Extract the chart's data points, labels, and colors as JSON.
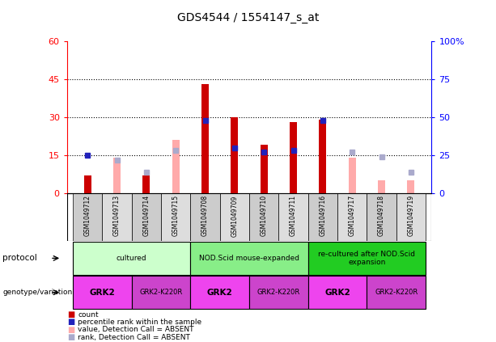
{
  "title": "GDS4544 / 1554147_s_at",
  "samples": [
    "GSM1049712",
    "GSM1049713",
    "GSM1049714",
    "GSM1049715",
    "GSM1049708",
    "GSM1049709",
    "GSM1049710",
    "GSM1049711",
    "GSM1049716",
    "GSM1049717",
    "GSM1049718",
    "GSM1049719"
  ],
  "count_values": [
    7,
    0,
    7,
    0,
    43,
    30,
    19,
    28,
    29,
    0,
    0,
    0
  ],
  "percentile_values": [
    25,
    0,
    0,
    0,
    48,
    30,
    27,
    28,
    48,
    0,
    0,
    0
  ],
  "absent_value_values": [
    0,
    14,
    0,
    21,
    0,
    0,
    0,
    0,
    0,
    14,
    5,
    5
  ],
  "absent_rank_values": [
    0,
    22,
    14,
    28,
    0,
    0,
    0,
    0,
    0,
    27,
    24,
    14
  ],
  "ylim_left": [
    0,
    60
  ],
  "ylim_right": [
    0,
    100
  ],
  "yticks_left": [
    0,
    15,
    30,
    45,
    60
  ],
  "yticks_right": [
    0,
    25,
    50,
    75,
    100
  ],
  "ytick_labels_left": [
    "0",
    "15",
    "30",
    "45",
    "60"
  ],
  "ytick_labels_right": [
    "0",
    "25",
    "50",
    "75",
    "100%"
  ],
  "color_count": "#cc0000",
  "color_percentile": "#2222bb",
  "color_absent_value": "#ffaaaa",
  "color_absent_rank": "#aaaacc",
  "protocol_groups": [
    {
      "label": "cultured",
      "start": 0,
      "end": 3,
      "color": "#ccffcc"
    },
    {
      "label": "NOD.Scid mouse-expanded",
      "start": 4,
      "end": 7,
      "color": "#88ee88"
    },
    {
      "label": "re-cultured after NOD.Scid\nexpansion",
      "start": 8,
      "end": 11,
      "color": "#22cc22"
    }
  ],
  "genotype_groups": [
    {
      "label": "GRK2",
      "start": 0,
      "end": 1,
      "color": "#ee44ee"
    },
    {
      "label": "GRK2-K220R",
      "start": 2,
      "end": 3,
      "color": "#cc44cc"
    },
    {
      "label": "GRK2",
      "start": 4,
      "end": 5,
      "color": "#ee44ee"
    },
    {
      "label": "GRK2-K220R",
      "start": 6,
      "end": 7,
      "color": "#cc44cc"
    },
    {
      "label": "GRK2",
      "start": 8,
      "end": 9,
      "color": "#ee44ee"
    },
    {
      "label": "GRK2-K220R",
      "start": 10,
      "end": 11,
      "color": "#cc44cc"
    }
  ],
  "bg_color_samples": [
    "#cccccc",
    "#dddddd"
  ],
  "legend_items": [
    {
      "color": "#cc0000",
      "label": "count"
    },
    {
      "color": "#2222bb",
      "label": "percentile rank within the sample"
    },
    {
      "color": "#ffaaaa",
      "label": "value, Detection Call = ABSENT"
    },
    {
      "color": "#aaaacc",
      "label": "rank, Detection Call = ABSENT"
    }
  ]
}
